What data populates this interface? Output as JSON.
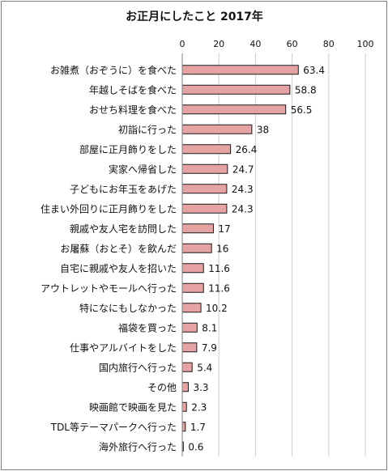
{
  "chart_data": {
    "type": "bar",
    "orientation": "horizontal",
    "title": "お正月にしたこと 2017年",
    "xlim": [
      0,
      100
    ],
    "xticks": [
      0,
      20,
      40,
      60,
      80,
      100
    ],
    "grid": true,
    "categories": [
      "お雑煮（おぞうに）を食べた",
      "年越しそばを食べた",
      "おせち料理を食べた",
      "初詣に行った",
      "部屋に正月飾りをした",
      "実家へ帰省した",
      "子どもにお年玉をあげた",
      "住まい外回りに正月飾りをした",
      "親戚や友人宅を訪問した",
      "お屠蘇（おとそ）を飲んだ",
      "自宅に親戚や友人を招いた",
      "アウトレットやモールへ行った",
      "特になにもしなかった",
      "福袋を買った",
      "仕事やアルバイトをした",
      "国内旅行へ行った",
      "その他",
      "映画館で映画を見た",
      "TDL等テーマパークへ行った",
      "海外旅行へ行った"
    ],
    "values": [
      63.4,
      58.8,
      56.5,
      38,
      26.4,
      24.7,
      24.3,
      24.3,
      17,
      16,
      11.6,
      11.6,
      10.2,
      8.1,
      7.9,
      5.4,
      3.3,
      2.3,
      1.7,
      0.6
    ],
    "value_labels": [
      "63.4",
      "58.8",
      "56.5",
      "38",
      "26.4",
      "24.7",
      "24.3",
      "24.3",
      "17",
      "16",
      "11.6",
      "11.6",
      "10.2",
      "8.1",
      "7.9",
      "5.4",
      "3.3",
      "2.3",
      "1.7",
      "0.6"
    ],
    "colors": {
      "bar_fill": "#e6a3a3",
      "bar_stroke": "#1a1a1a",
      "grid": "#cfcfcf",
      "axis": "#7f7f7f"
    }
  }
}
